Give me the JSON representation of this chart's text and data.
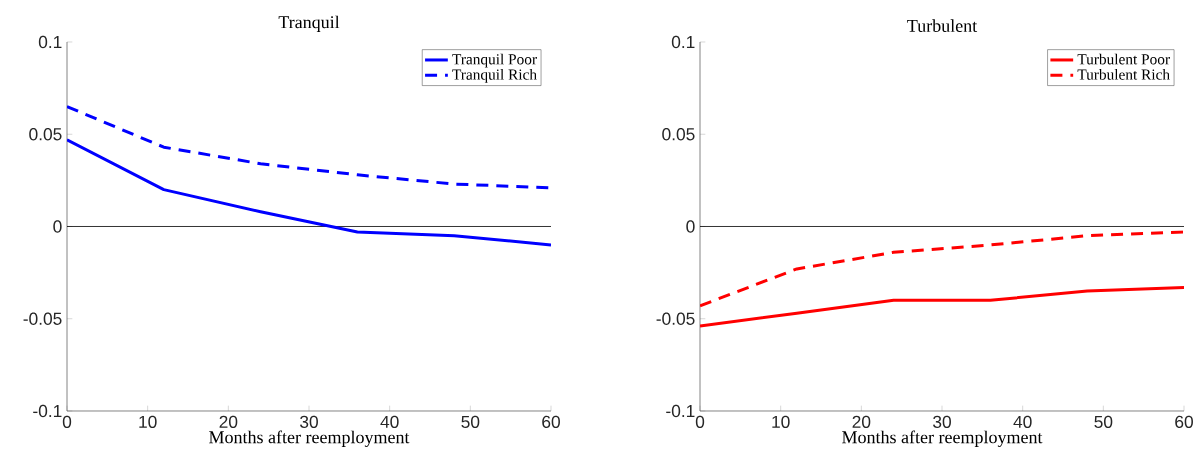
{
  "chart_data": [
    {
      "type": "line",
      "title": "Tranquil",
      "xlabel": "Months after reemployment",
      "x": [
        0,
        12,
        24,
        36,
        48,
        60
      ],
      "xlim": [
        0,
        60
      ],
      "xticks": [
        0,
        10,
        20,
        30,
        40,
        50,
        60
      ],
      "ylim": [
        -0.1,
        0.1
      ],
      "yticks": [
        -0.1,
        -0.05,
        0,
        0.05,
        0.1
      ],
      "legend": "top right",
      "ref_lines": [
        {
          "axis": "y",
          "value": 0,
          "color": "#000000"
        }
      ],
      "series": [
        {
          "name": "Tranquil Poor",
          "color": "#0000ff",
          "line_style": "solid",
          "values": [
            0.047,
            0.02,
            0.008,
            -0.003,
            -0.005,
            -0.01
          ]
        },
        {
          "name": "Tranquil Rich",
          "color": "#0000ff",
          "line_style": "dashed",
          "values": [
            0.065,
            0.043,
            0.034,
            0.028,
            0.023,
            0.021
          ]
        }
      ]
    },
    {
      "type": "line",
      "title": "Turbulent",
      "xlabel": "Months after reemployment",
      "x": [
        0,
        12,
        24,
        36,
        48,
        60
      ],
      "xlim": [
        0,
        60
      ],
      "xticks": [
        0,
        10,
        20,
        30,
        40,
        50,
        60
      ],
      "ylim": [
        -0.1,
        0.1
      ],
      "yticks": [
        -0.1,
        -0.05,
        0,
        0.05,
        0.1
      ],
      "legend": "top right",
      "ref_lines": [
        {
          "axis": "y",
          "value": 0,
          "color": "#000000"
        }
      ],
      "series": [
        {
          "name": "Turbulent Poor",
          "color": "#ff0000",
          "line_style": "solid",
          "values": [
            -0.054,
            -0.047,
            -0.04,
            -0.04,
            -0.035,
            -0.033
          ]
        },
        {
          "name": "Turbulent Rich",
          "color": "#ff0000",
          "line_style": "dashed",
          "values": [
            -0.043,
            -0.023,
            -0.014,
            -0.01,
            -0.005,
            -0.003
          ]
        }
      ]
    }
  ]
}
